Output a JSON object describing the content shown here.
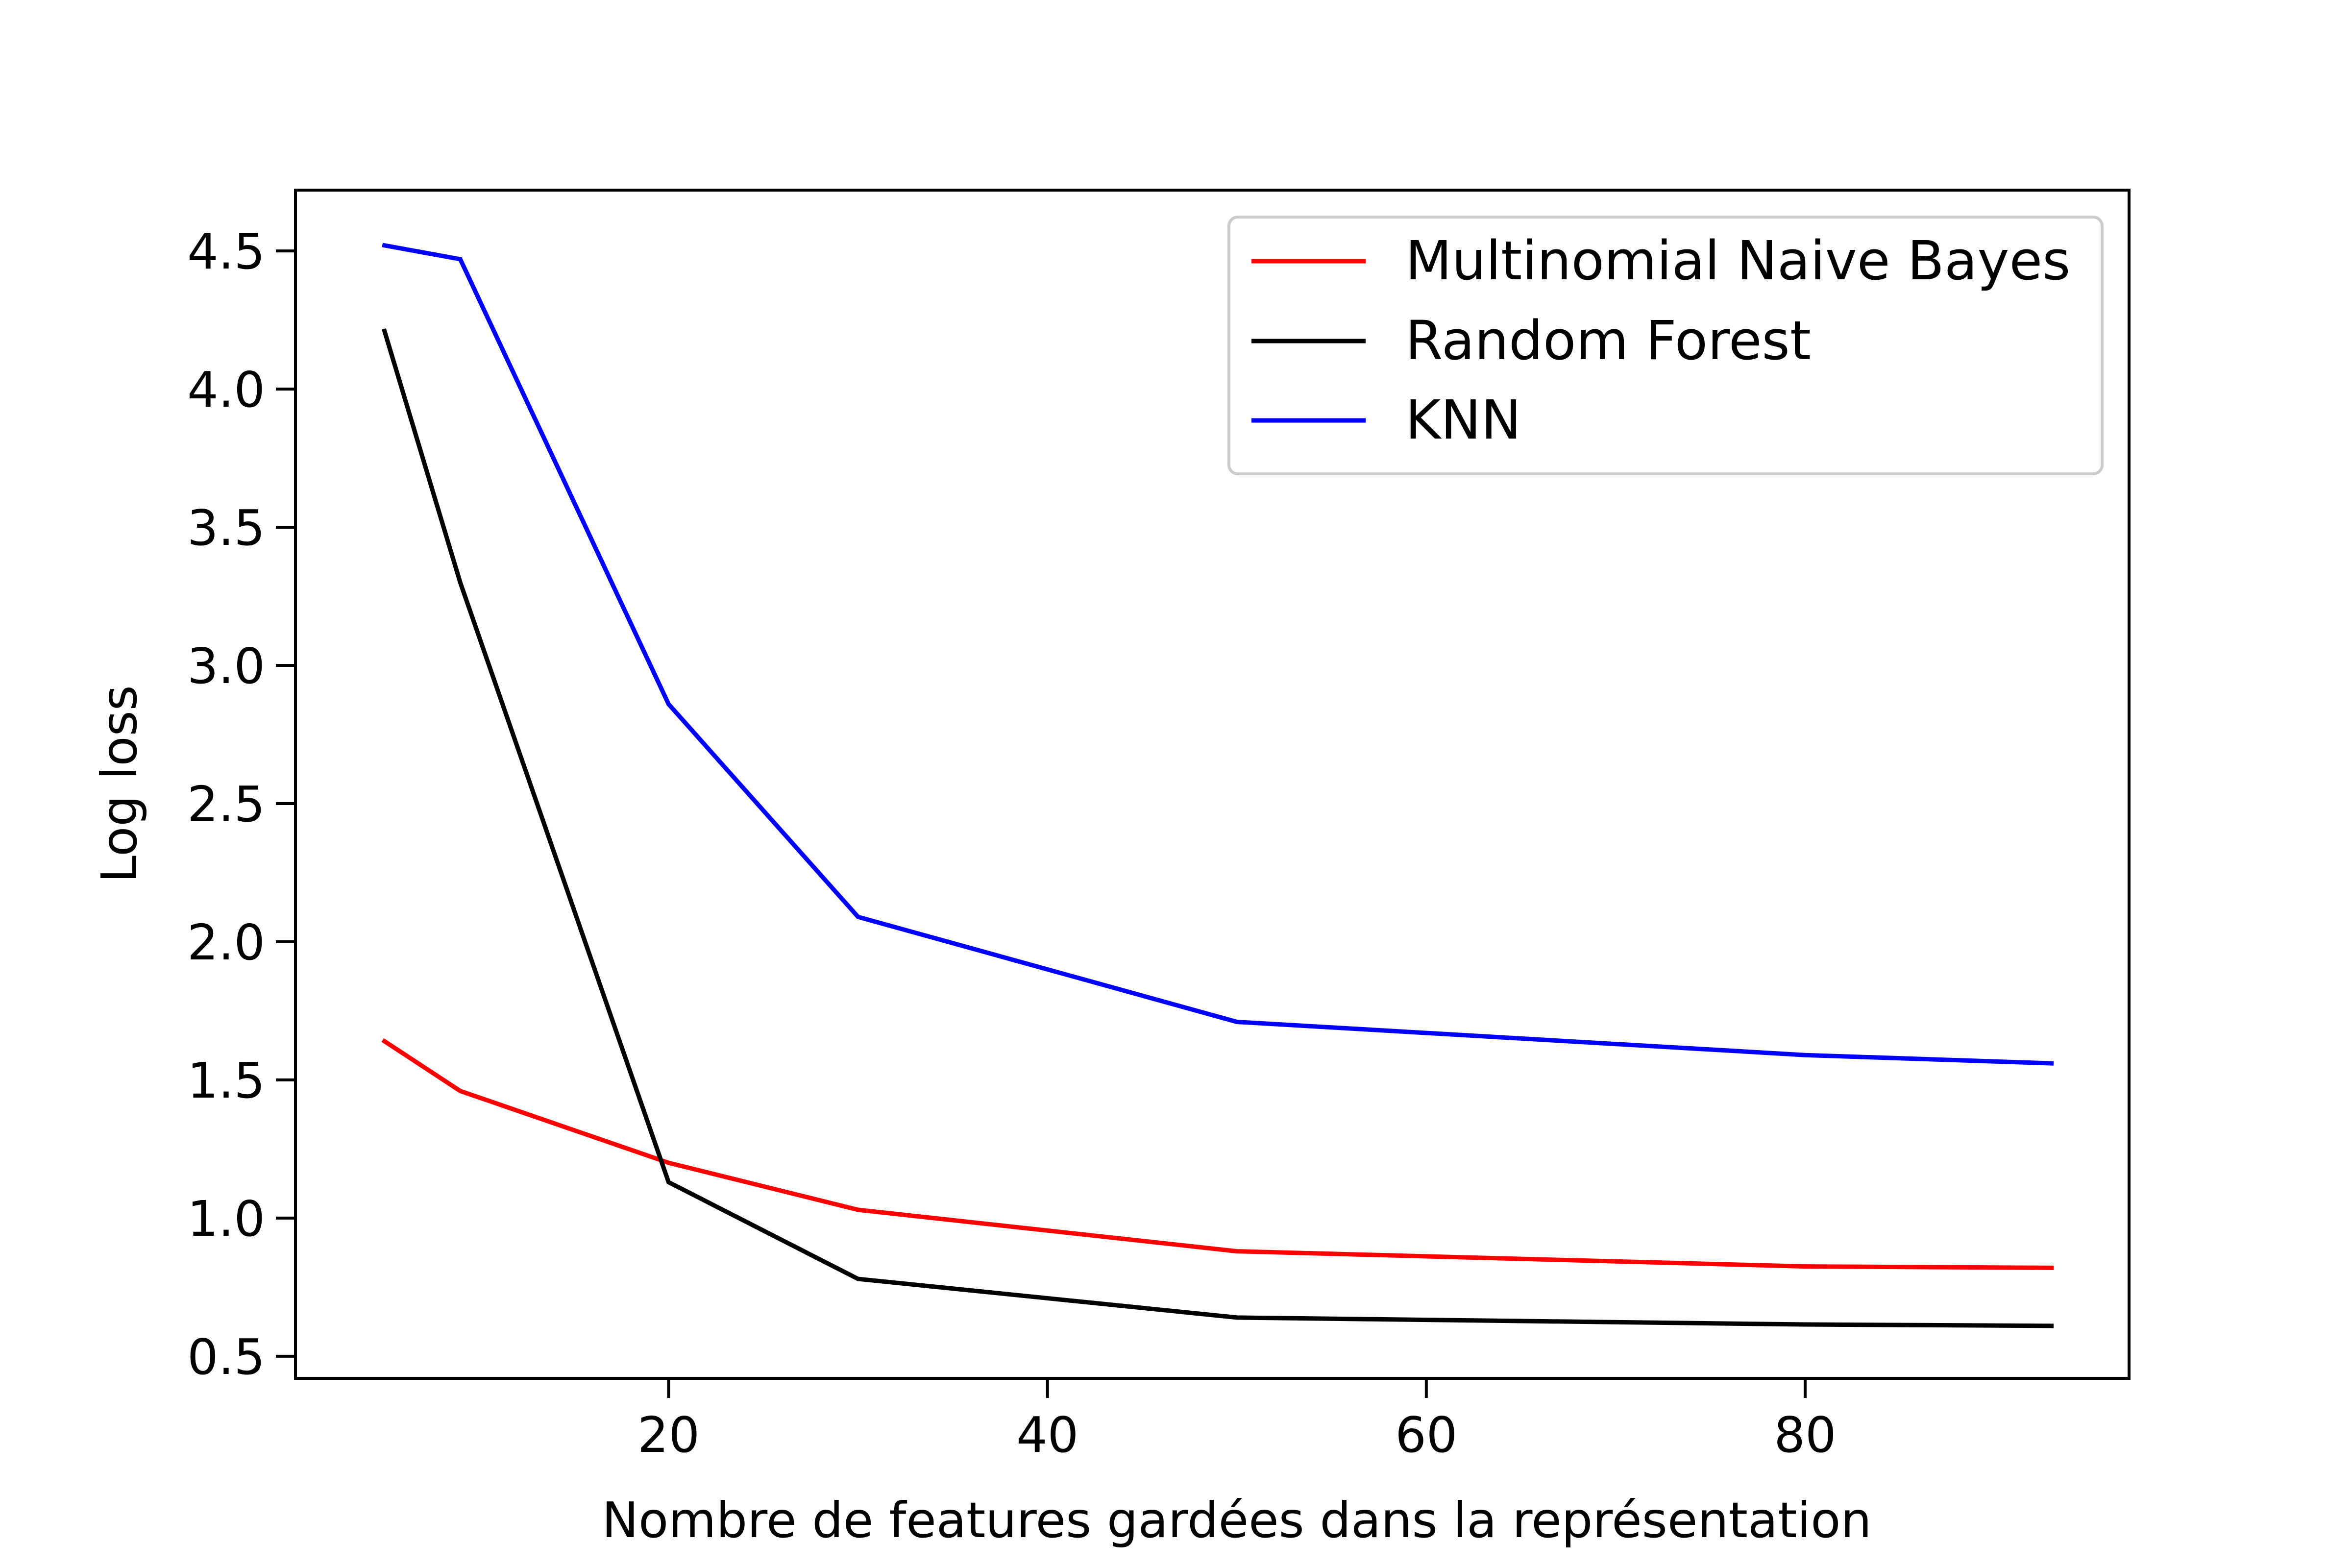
{
  "chart_data": {
    "type": "line",
    "title": "",
    "xlabel": "Nombre de features gardées dans la représentation",
    "ylabel": "Log loss",
    "xlim": [
      0.3,
      97.1
    ],
    "ylim": [
      0.42,
      4.72
    ],
    "xticks": [
      20,
      40,
      60,
      80
    ],
    "yticks": [
      0.5,
      1.0,
      1.5,
      2.0,
      2.5,
      3.0,
      3.5,
      4.0,
      4.5
    ],
    "xtick_labels": [
      "20",
      "40",
      "60",
      "80"
    ],
    "ytick_labels": [
      "0.5",
      "1.0",
      "1.5",
      "2.0",
      "2.5",
      "3.0",
      "3.5",
      "4.0",
      "4.5"
    ],
    "grid": false,
    "legend_position": "top-right",
    "x": [
      5,
      9,
      20,
      30,
      50,
      80,
      93
    ],
    "series": [
      {
        "name": "Multinomial Naive Bayes",
        "color": "#ff0000",
        "values": [
          1.64,
          1.46,
          1.2,
          1.03,
          0.88,
          0.825,
          0.82
        ]
      },
      {
        "name": "Random Forest",
        "color": "#000000",
        "values": [
          4.21,
          3.3,
          1.13,
          0.78,
          0.64,
          0.615,
          0.61
        ]
      },
      {
        "name": "KNN",
        "color": "#0000ff",
        "values": [
          4.52,
          4.47,
          2.86,
          2.09,
          1.71,
          1.59,
          1.56
        ]
      }
    ]
  }
}
